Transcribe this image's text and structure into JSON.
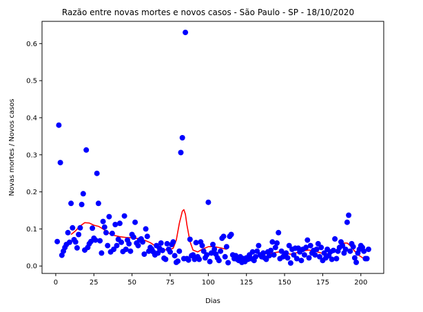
{
  "chart_data": {
    "type": "scatter",
    "title": "Razão entre novas mortes e novos casos - São Paulo - SP - 18/10/2020",
    "xlabel": "Dias",
    "ylabel": "Novas mortes / Novos casos",
    "xlim": [
      -9,
      215
    ],
    "ylim": [
      -0.02,
      0.66
    ],
    "xticks": [
      0,
      25,
      50,
      75,
      100,
      125,
      150,
      175,
      200
    ],
    "yticks": [
      0.0,
      0.1,
      0.2,
      0.3,
      0.4,
      0.5,
      0.6
    ],
    "grid": false,
    "colors": {
      "points": "#0000ff",
      "trend": "#ff0000",
      "axes": "#000000"
    },
    "series": [
      {
        "kind": "scatter",
        "points": [
          [
            1,
            0.066
          ],
          [
            2,
            0.38
          ],
          [
            3,
            0.279
          ],
          [
            4,
            0.029
          ],
          [
            5,
            0.04
          ],
          [
            6,
            0.05
          ],
          [
            7,
            0.058
          ],
          [
            8,
            0.09
          ],
          [
            9,
            0.064
          ],
          [
            10,
            0.169
          ],
          [
            11,
            0.103
          ],
          [
            12,
            0.071
          ],
          [
            13,
            0.065
          ],
          [
            14,
            0.049
          ],
          [
            15,
            0.085
          ],
          [
            16,
            0.103
          ],
          [
            17,
            0.166
          ],
          [
            18,
            0.195
          ],
          [
            19,
            0.043
          ],
          [
            20,
            0.313
          ],
          [
            21,
            0.05
          ],
          [
            22,
            0.06
          ],
          [
            23,
            0.066
          ],
          [
            24,
            0.102
          ],
          [
            25,
            0.075
          ],
          [
            26,
            0.07
          ],
          [
            27,
            0.25
          ],
          [
            28,
            0.169
          ],
          [
            29,
            0.068
          ],
          [
            30,
            0.035
          ],
          [
            31,
            0.12
          ],
          [
            32,
            0.105
          ],
          [
            33,
            0.09
          ],
          [
            34,
            0.055
          ],
          [
            35,
            0.133
          ],
          [
            36,
            0.038
          ],
          [
            37,
            0.088
          ],
          [
            38,
            0.045
          ],
          [
            39,
            0.112
          ],
          [
            40,
            0.055
          ],
          [
            41,
            0.072
          ],
          [
            42,
            0.115
          ],
          [
            43,
            0.064
          ],
          [
            44,
            0.039
          ],
          [
            45,
            0.135
          ],
          [
            46,
            0.045
          ],
          [
            47,
            0.07
          ],
          [
            48,
            0.06
          ],
          [
            49,
            0.04
          ],
          [
            50,
            0.085
          ],
          [
            51,
            0.078
          ],
          [
            52,
            0.118
          ],
          [
            53,
            0.062
          ],
          [
            54,
            0.055
          ],
          [
            55,
            0.07
          ],
          [
            56,
            0.073
          ],
          [
            57,
            0.065
          ],
          [
            58,
            0.032
          ],
          [
            59,
            0.1
          ],
          [
            60,
            0.08
          ],
          [
            61,
            0.04
          ],
          [
            62,
            0.05
          ],
          [
            63,
            0.045
          ],
          [
            64,
            0.038
          ],
          [
            65,
            0.03
          ],
          [
            66,
            0.055
          ],
          [
            67,
            0.035
          ],
          [
            68,
            0.048
          ],
          [
            69,
            0.062
          ],
          [
            70,
            0.042
          ],
          [
            71,
            0.021
          ],
          [
            72,
            0.018
          ],
          [
            73,
            0.06
          ],
          [
            74,
            0.045
          ],
          [
            75,
            0.038
          ],
          [
            76,
            0.058
          ],
          [
            77,
            0.065
          ],
          [
            78,
            0.028
          ],
          [
            79,
            0.01
          ],
          [
            80,
            0.013
          ],
          [
            81,
            0.04
          ],
          [
            82,
            0.306
          ],
          [
            83,
            0.346
          ],
          [
            84,
            0.02
          ],
          [
            85,
            0.63
          ],
          [
            86,
            0.02
          ],
          [
            87,
            0.016
          ],
          [
            88,
            0.072
          ],
          [
            89,
            0.028
          ],
          [
            90,
            0.03
          ],
          [
            91,
            0.018
          ],
          [
            92,
            0.063
          ],
          [
            93,
            0.025
          ],
          [
            94,
            0.018
          ],
          [
            95,
            0.065
          ],
          [
            96,
            0.055
          ],
          [
            97,
            0.04
          ],
          [
            98,
            0.022
          ],
          [
            99,
            0.03
          ],
          [
            100,
            0.172
          ],
          [
            101,
            0.012
          ],
          [
            102,
            0.035
          ],
          [
            103,
            0.058
          ],
          [
            104,
            0.045
          ],
          [
            105,
            0.032
          ],
          [
            106,
            0.022
          ],
          [
            107,
            0.015
          ],
          [
            108,
            0.04
          ],
          [
            109,
            0.075
          ],
          [
            110,
            0.08
          ],
          [
            111,
            0.025
          ],
          [
            112,
            0.052
          ],
          [
            113,
            0.009
          ],
          [
            114,
            0.08
          ],
          [
            115,
            0.085
          ],
          [
            116,
            0.03
          ],
          [
            117,
            0.02
          ],
          [
            118,
            0.028
          ],
          [
            119,
            0.018
          ],
          [
            120,
            0.015
          ],
          [
            121,
            0.025
          ],
          [
            122,
            0.01
          ],
          [
            123,
            0.02
          ],
          [
            124,
            0.012
          ],
          [
            125,
            0.022
          ],
          [
            126,
            0.018
          ],
          [
            127,
            0.03
          ],
          [
            128,
            0.02
          ],
          [
            129,
            0.038
          ],
          [
            130,
            0.015
          ],
          [
            131,
            0.025
          ],
          [
            132,
            0.04
          ],
          [
            133,
            0.055
          ],
          [
            134,
            0.03
          ],
          [
            135,
            0.025
          ],
          [
            136,
            0.035
          ],
          [
            137,
            0.022
          ],
          [
            138,
            0.018
          ],
          [
            139,
            0.038
          ],
          [
            140,
            0.028
          ],
          [
            141,
            0.042
          ],
          [
            142,
            0.065
          ],
          [
            143,
            0.03
          ],
          [
            144,
            0.05
          ],
          [
            145,
            0.062
          ],
          [
            146,
            0.09
          ],
          [
            147,
            0.02
          ],
          [
            148,
            0.04
          ],
          [
            149,
            0.025
          ],
          [
            150,
            0.03
          ],
          [
            151,
            0.035
          ],
          [
            152,
            0.022
          ],
          [
            153,
            0.055
          ],
          [
            154,
            0.008
          ],
          [
            155,
            0.045
          ],
          [
            156,
            0.03
          ],
          [
            157,
            0.048
          ],
          [
            158,
            0.02
          ],
          [
            159,
            0.048
          ],
          [
            160,
            0.038
          ],
          [
            161,
            0.015
          ],
          [
            162,
            0.045
          ],
          [
            163,
            0.03
          ],
          [
            164,
            0.05
          ],
          [
            165,
            0.07
          ],
          [
            166,
            0.022
          ],
          [
            167,
            0.055
          ],
          [
            168,
            0.035
          ],
          [
            169,
            0.042
          ],
          [
            170,
            0.03
          ],
          [
            171,
            0.045
          ],
          [
            172,
            0.06
          ],
          [
            173,
            0.025
          ],
          [
            174,
            0.05
          ],
          [
            175,
            0.015
          ],
          [
            176,
            0.035
          ],
          [
            177,
            0.022
          ],
          [
            178,
            0.045
          ],
          [
            179,
            0.028
          ],
          [
            180,
            0.038
          ],
          [
            181,
            0.018
          ],
          [
            182,
            0.042
          ],
          [
            183,
            0.073
          ],
          [
            184,
            0.02
          ],
          [
            185,
            0.04
          ],
          [
            186,
            0.05
          ],
          [
            187,
            0.065
          ],
          [
            188,
            0.055
          ],
          [
            189,
            0.035
          ],
          [
            190,
            0.045
          ],
          [
            191,
            0.118
          ],
          [
            192,
            0.137
          ],
          [
            193,
            0.04
          ],
          [
            194,
            0.06
          ],
          [
            195,
            0.052
          ],
          [
            196,
            0.022
          ],
          [
            197,
            0.01
          ],
          [
            198,
            0.035
          ],
          [
            199,
            0.045
          ],
          [
            200,
            0.055
          ],
          [
            201,
            0.05
          ],
          [
            202,
            0.04
          ],
          [
            203,
            0.02
          ],
          [
            204,
            0.02
          ],
          [
            205,
            0.045
          ]
        ]
      },
      {
        "kind": "line",
        "points": [
          [
            10,
            0.085
          ],
          [
            13,
            0.095
          ],
          [
            16,
            0.108
          ],
          [
            19,
            0.117
          ],
          [
            22,
            0.116
          ],
          [
            25,
            0.11
          ],
          [
            28,
            0.107
          ],
          [
            31,
            0.1
          ],
          [
            34,
            0.09
          ],
          [
            38,
            0.083
          ],
          [
            42,
            0.079
          ],
          [
            46,
            0.077
          ],
          [
            50,
            0.076
          ],
          [
            54,
            0.074
          ],
          [
            58,
            0.07
          ],
          [
            62,
            0.063
          ],
          [
            66,
            0.052
          ],
          [
            70,
            0.045
          ],
          [
            74,
            0.043
          ],
          [
            77,
            0.048
          ],
          [
            79,
            0.07
          ],
          [
            81,
            0.115
          ],
          [
            83,
            0.148
          ],
          [
            84,
            0.152
          ],
          [
            85,
            0.14
          ],
          [
            86,
            0.11
          ],
          [
            88,
            0.066
          ],
          [
            90,
            0.043
          ],
          [
            93,
            0.038
          ],
          [
            96,
            0.045
          ],
          [
            100,
            0.052
          ],
          [
            104,
            0.052
          ],
          [
            108,
            0.049
          ],
          [
            112,
            0.045
          ]
        ]
      },
      {
        "kind": "line",
        "points": [
          [
            134,
            0.033
          ],
          [
            138,
            0.033
          ],
          [
            142,
            0.035
          ],
          [
            146,
            0.038
          ],
          [
            150,
            0.034
          ],
          [
            154,
            0.032
          ],
          [
            158,
            0.036
          ],
          [
            162,
            0.041
          ],
          [
            166,
            0.043
          ],
          [
            170,
            0.04
          ],
          [
            174,
            0.035
          ],
          [
            178,
            0.033
          ],
          [
            181,
            0.036
          ],
          [
            184,
            0.042
          ],
          [
            187,
            0.053
          ],
          [
            189,
            0.062
          ],
          [
            191,
            0.062
          ],
          [
            193,
            0.055
          ],
          [
            196,
            0.04
          ],
          [
            199,
            0.028
          ],
          [
            202,
            0.02
          ],
          [
            205,
            0.015
          ]
        ]
      }
    ]
  }
}
